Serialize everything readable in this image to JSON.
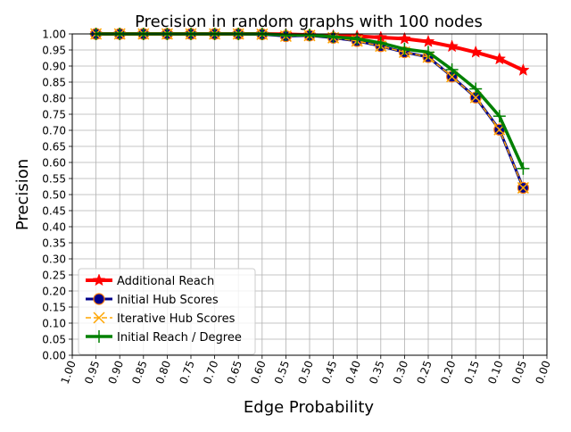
{
  "chart_data": {
    "type": "line",
    "title": "Precision in random graphs with 100 nodes",
    "xlabel": "Edge Probability",
    "ylabel": "Precision",
    "x_inverted": true,
    "xlim": [
      1.0,
      0.0
    ],
    "ylim": [
      0.0,
      1.0
    ],
    "grid": true,
    "legend_position": "lower-left",
    "x_tick_labels": [
      "1.00",
      "0.95",
      "0.90",
      "0.85",
      "0.80",
      "0.75",
      "0.70",
      "0.65",
      "0.60",
      "0.55",
      "0.50",
      "0.45",
      "0.40",
      "0.35",
      "0.30",
      "0.25",
      "0.20",
      "0.15",
      "0.10",
      "0.05",
      "0.00"
    ],
    "y_tick_labels": [
      "0.00",
      "0.05",
      "0.10",
      "0.15",
      "0.20",
      "0.25",
      "0.30",
      "0.35",
      "0.40",
      "0.45",
      "0.50",
      "0.55",
      "0.60",
      "0.65",
      "0.70",
      "0.75",
      "0.80",
      "0.85",
      "0.90",
      "0.95",
      "1.00"
    ],
    "x": [
      0.95,
      0.9,
      0.85,
      0.8,
      0.75,
      0.7,
      0.65,
      0.6,
      0.55,
      0.5,
      0.45,
      0.4,
      0.35,
      0.3,
      0.25,
      0.2,
      0.15,
      0.1,
      0.05
    ],
    "series": [
      {
        "name": "Additional Reach",
        "color": "#ff0000",
        "marker": "star",
        "values": [
          1.0,
          1.0,
          1.0,
          1.0,
          1.0,
          1.0,
          1.0,
          1.0,
          0.999,
          0.997,
          0.994,
          0.993,
          0.989,
          0.985,
          0.976,
          0.961,
          0.943,
          0.922,
          0.887
        ]
      },
      {
        "name": "Initial Hub Scores",
        "color": "#00008b",
        "marker": "circle",
        "values": [
          1.0,
          1.0,
          1.0,
          1.0,
          1.0,
          1.0,
          1.0,
          0.999,
          0.993,
          0.995,
          0.988,
          0.978,
          0.962,
          0.943,
          0.928,
          0.867,
          0.802,
          0.702,
          0.521
        ]
      },
      {
        "name": "Iterative Hub Scores",
        "color": "#ffa500",
        "marker": "x",
        "values": [
          1.0,
          1.0,
          1.0,
          1.0,
          1.0,
          1.0,
          1.0,
          0.999,
          0.993,
          0.995,
          0.988,
          0.978,
          0.962,
          0.943,
          0.928,
          0.867,
          0.802,
          0.702,
          0.521
        ]
      },
      {
        "name": "Initial Reach / Degree",
        "color": "#008000",
        "marker": "plus",
        "values": [
          1.0,
          1.0,
          1.0,
          1.0,
          1.0,
          1.0,
          1.0,
          1.0,
          0.997,
          0.997,
          0.991,
          0.985,
          0.972,
          0.953,
          0.943,
          0.889,
          0.829,
          0.744,
          0.581
        ]
      }
    ]
  }
}
